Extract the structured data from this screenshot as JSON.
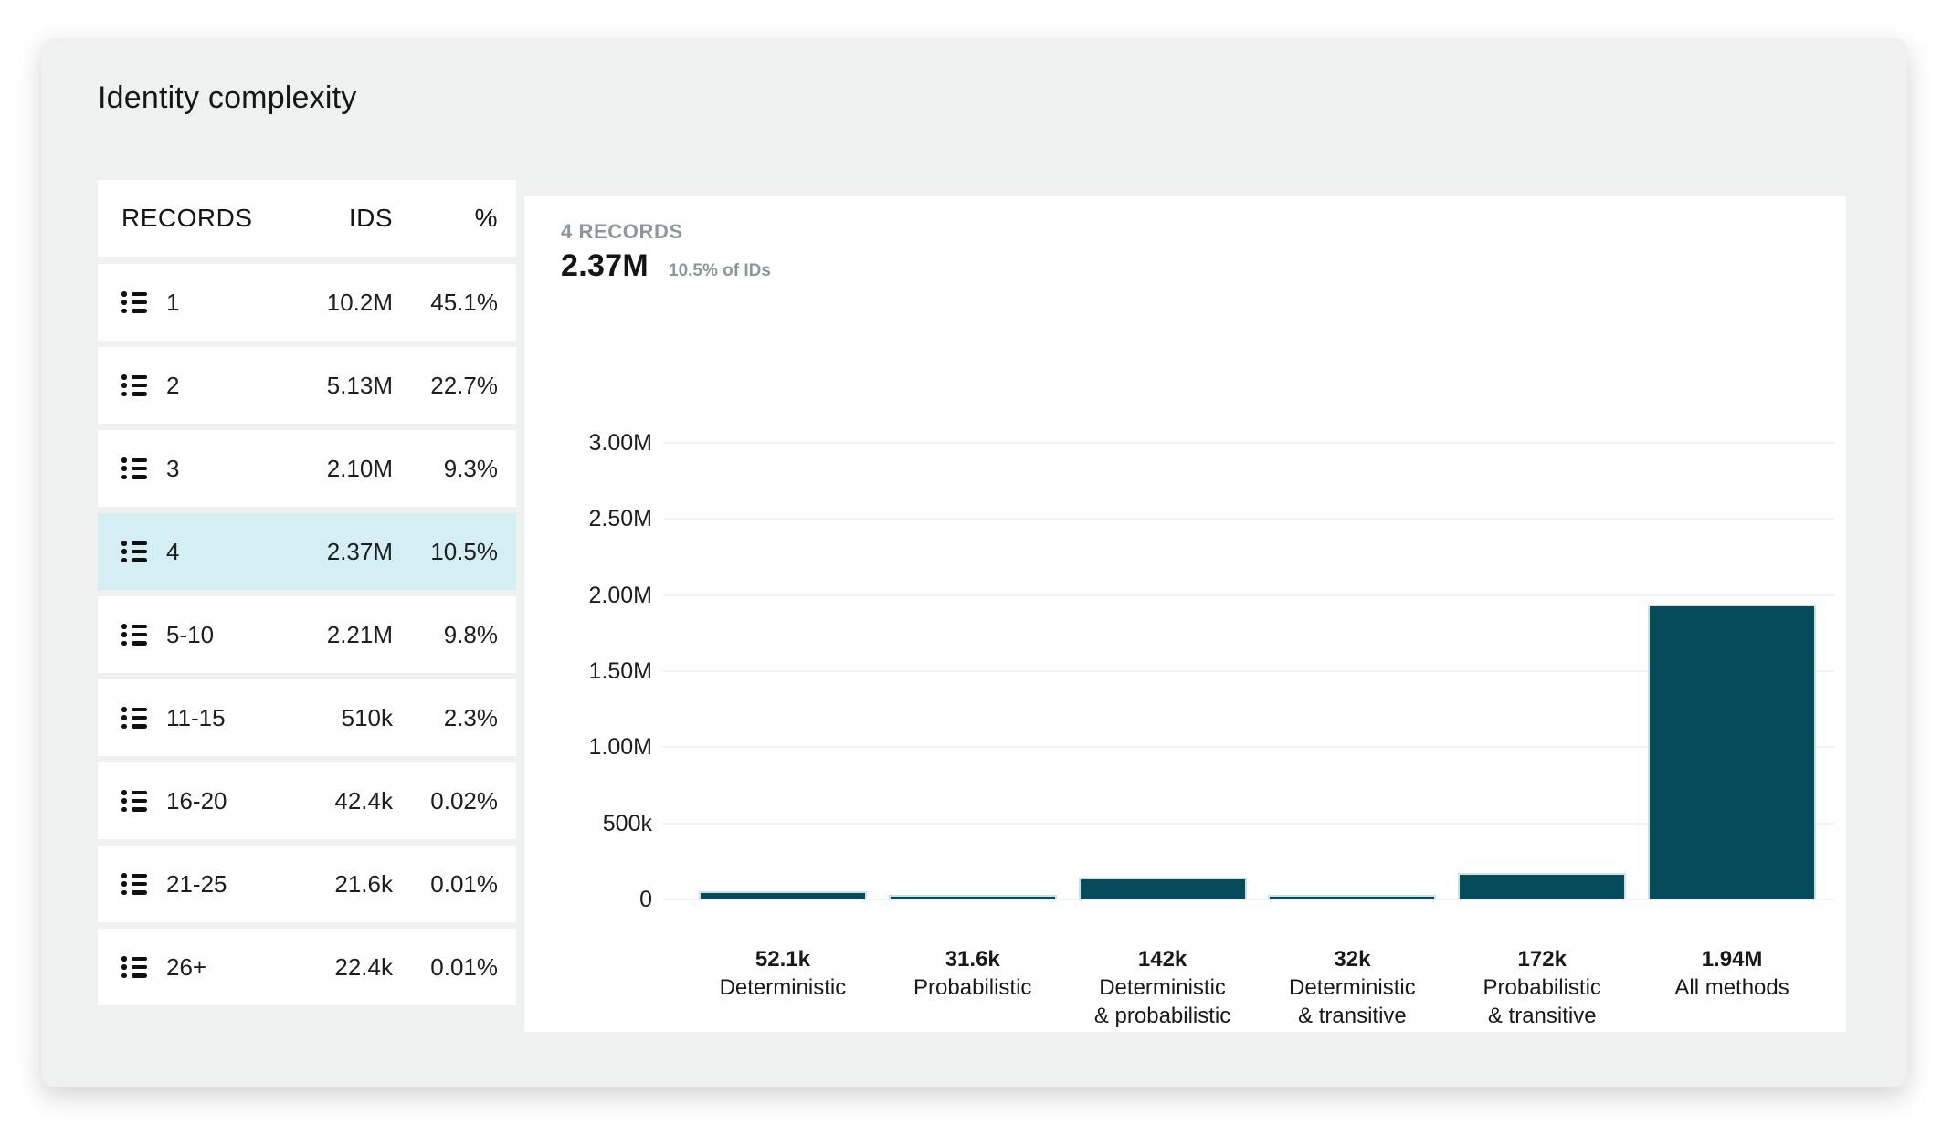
{
  "title": "Identity complexity",
  "colors": {
    "card_bg": "#eff1f0",
    "panel_bg": "#ffffff",
    "row_highlight": "#d3eff3",
    "bar": "#064b59",
    "muted_text": "#8e969a"
  },
  "table": {
    "columns": [
      "RECORDS",
      "IDS",
      "%"
    ],
    "row_icon": "list-icon",
    "rows": [
      {
        "records": "1",
        "ids": "10.2M",
        "pct": "45.1%",
        "selected": false
      },
      {
        "records": "2",
        "ids": "5.13M",
        "pct": "22.7%",
        "selected": false
      },
      {
        "records": "3",
        "ids": "2.10M",
        "pct": "9.3%",
        "selected": false
      },
      {
        "records": "4",
        "ids": "2.37M",
        "pct": "10.5%",
        "selected": true
      },
      {
        "records": "5-10",
        "ids": "2.21M",
        "pct": "9.8%",
        "selected": false
      },
      {
        "records": "11-15",
        "ids": "510k",
        "pct": "2.3%",
        "selected": false
      },
      {
        "records": "16-20",
        "ids": "42.4k",
        "pct": "0.02%",
        "selected": false
      },
      {
        "records": "21-25",
        "ids": "21.6k",
        "pct": "0.01%",
        "selected": false
      },
      {
        "records": "26+",
        "ids": "22.4k",
        "pct": "0.01%",
        "selected": false
      }
    ]
  },
  "chart": {
    "header_label": "4 RECORDS",
    "header_value": "2.37M",
    "header_share": "10.5% of IDs"
  },
  "chart_data": {
    "type": "bar",
    "title": "4 RECORDS",
    "subtitle": "2.37M (10.5% of IDs)",
    "categories": [
      "Deterministic",
      "Probabilistic",
      "Deterministic & probabilistic",
      "Deterministic & transitive",
      "Probabilistic & transitive",
      "All methods"
    ],
    "category_lines": [
      [
        "Deterministic"
      ],
      [
        "Probabilistic"
      ],
      [
        "Deterministic",
        "& probabilistic"
      ],
      [
        "Deterministic",
        "& transitive"
      ],
      [
        "Probabilistic",
        "& transitive"
      ],
      [
        "All methods"
      ]
    ],
    "values": [
      52100,
      31600,
      142000,
      32000,
      172000,
      1940000
    ],
    "value_labels": [
      "52.1k",
      "31.6k",
      "142k",
      "32k",
      "172k",
      "1.94M"
    ],
    "xlabel": "",
    "ylabel": "",
    "ylim": [
      0,
      3000000
    ],
    "grid": true,
    "legend": "none",
    "bar_color": "#064b59",
    "yticks": [
      {
        "label": "3.00M",
        "value": 3000000
      },
      {
        "label": "2.50M",
        "value": 2500000
      },
      {
        "label": "2.00M",
        "value": 2000000
      },
      {
        "label": "1.50M",
        "value": 1500000
      },
      {
        "label": "1.00M",
        "value": 1000000
      },
      {
        "label": "500k",
        "value": 500000
      },
      {
        "label": "0",
        "value": 0
      }
    ]
  }
}
